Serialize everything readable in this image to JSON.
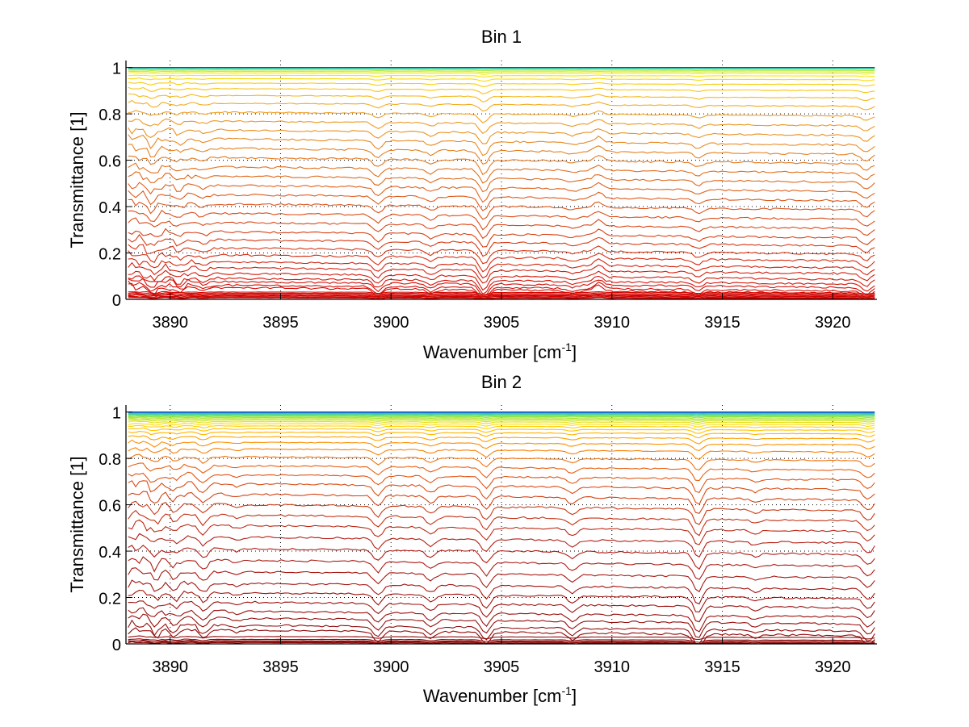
{
  "chart_data": [
    {
      "type": "line",
      "title": "Bin 1",
      "xlabel": "Wavenumber [cm",
      "xlabel_sup": "-1",
      "xlabel_end": "]",
      "ylabel": "Transmittance [1]",
      "xlim": [
        3888,
        3922
      ],
      "ylim": [
        0,
        1.03
      ],
      "xticks": [
        3890,
        3895,
        3900,
        3905,
        3910,
        3915,
        3920
      ],
      "xtick_labels": [
        "3890",
        "3895",
        "3900",
        "3905",
        "3910",
        "3915",
        "3920"
      ],
      "yticks": [
        0,
        0.2,
        0.4,
        0.6,
        0.8,
        1
      ],
      "ytick_labels": [
        "0",
        "0.2",
        "0.4",
        "0.6",
        "0.8",
        "1"
      ],
      "grid": true,
      "x_range_data": [
        3888.1,
        3921.9
      ],
      "colormap": "jet-upper (red to blue, by level)",
      "series_levels": [
        0.005,
        0.008,
        0.012,
        0.016,
        0.02,
        0.025,
        0.03,
        0.04,
        0.05,
        0.065,
        0.08,
        0.1,
        0.125,
        0.15,
        0.18,
        0.21,
        0.245,
        0.28,
        0.32,
        0.36,
        0.4,
        0.44,
        0.48,
        0.52,
        0.56,
        0.6,
        0.64,
        0.68,
        0.72,
        0.76,
        0.8,
        0.84,
        0.875,
        0.905,
        0.93,
        0.95,
        0.965,
        0.975,
        0.982,
        0.988,
        0.993,
        0.997,
        1.0
      ],
      "absorption_features": [
        {
          "x": 3889.2,
          "depth": 0.03
        },
        {
          "x": 3890.4,
          "depth": 0.02
        },
        {
          "x": 3891.5,
          "depth": 0.015
        },
        {
          "x": 3899.4,
          "depth": 0.035
        },
        {
          "x": 3901.8,
          "depth": 0.02
        },
        {
          "x": 3904.2,
          "depth": 0.06
        },
        {
          "x": 3908.2,
          "depth": 0.012
        },
        {
          "x": 3909.4,
          "depth": -0.025
        },
        {
          "x": 3913.9,
          "depth": 0.02
        },
        {
          "x": 3921.5,
          "depth": 0.03
        }
      ]
    },
    {
      "type": "line",
      "title": "Bin 2",
      "xlabel": "Wavenumber [cm",
      "xlabel_sup": "-1",
      "xlabel_end": "]",
      "ylabel": "Transmittance [1]",
      "xlim": [
        3888,
        3922
      ],
      "ylim": [
        0,
        1.03
      ],
      "xticks": [
        3890,
        3895,
        3900,
        3905,
        3910,
        3915,
        3920
      ],
      "xtick_labels": [
        "3890",
        "3895",
        "3900",
        "3905",
        "3910",
        "3915",
        "3920"
      ],
      "yticks": [
        0,
        0.2,
        0.4,
        0.6,
        0.8,
        1
      ],
      "ytick_labels": [
        "0",
        "0.2",
        "0.4",
        "0.6",
        "0.8",
        "1"
      ],
      "grid": true,
      "x_range_data": [
        3888.1,
        3921.9
      ],
      "colormap": "jet-upper (dark red to blue, by level)",
      "series_levels": [
        0.004,
        0.008,
        0.012,
        0.018,
        0.03,
        0.05,
        0.07,
        0.1,
        0.13,
        0.17,
        0.21,
        0.25,
        0.3,
        0.35,
        0.4,
        0.45,
        0.5,
        0.545,
        0.59,
        0.635,
        0.68,
        0.72,
        0.76,
        0.8,
        0.835,
        0.865,
        0.89,
        0.91,
        0.925,
        0.938,
        0.948,
        0.957,
        0.964,
        0.97,
        0.975,
        0.98,
        0.984,
        0.988,
        0.991,
        0.994,
        0.997,
        1.0
      ],
      "absorption_features": [
        {
          "x": 3889.3,
          "depth": 0.035
        },
        {
          "x": 3890.2,
          "depth": 0.03
        },
        {
          "x": 3891.5,
          "depth": 0.04
        },
        {
          "x": 3893.0,
          "depth": 0.012
        },
        {
          "x": 3899.4,
          "depth": 0.045
        },
        {
          "x": 3901.8,
          "depth": 0.03
        },
        {
          "x": 3904.3,
          "depth": 0.055
        },
        {
          "x": 3908.2,
          "depth": 0.03
        },
        {
          "x": 3913.9,
          "depth": 0.07
        },
        {
          "x": 3916.5,
          "depth": 0.015
        },
        {
          "x": 3921.6,
          "depth": 0.045
        }
      ]
    }
  ]
}
